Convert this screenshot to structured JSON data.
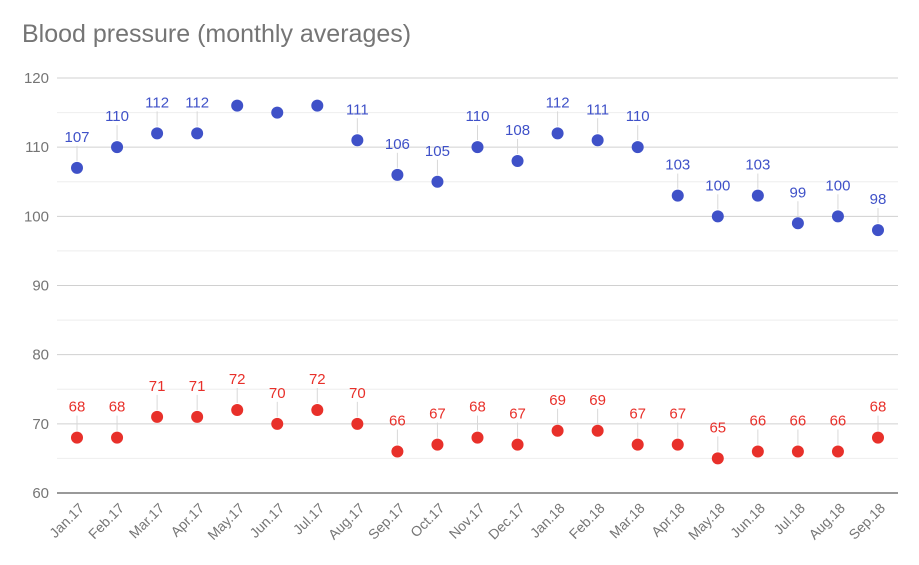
{
  "chart_data": {
    "type": "scatter",
    "title": "Blood pressure (monthly averages)",
    "xlabel": "",
    "ylabel": "",
    "ylim": [
      60,
      120
    ],
    "yticks": [
      60,
      70,
      80,
      90,
      100,
      110,
      120
    ],
    "grid": true,
    "legend": "none",
    "categories": [
      "Jan.17",
      "Feb.17",
      "Mar.17",
      "Apr.17",
      "May.17",
      "Jun.17",
      "Jul.17",
      "Aug.17",
      "Sep.17",
      "Oct.17",
      "Nov.17",
      "Dec.17",
      "Jan.18",
      "Feb.18",
      "Mar.18",
      "Apr.18",
      "May.18",
      "Jun.18",
      "Jul.18",
      "Aug.18",
      "Sep.18"
    ],
    "series": [
      {
        "color": "#3f51c8",
        "values": [
          107,
          110,
          112,
          112,
          116,
          115,
          116,
          111,
          106,
          105,
          110,
          108,
          112,
          111,
          110,
          103,
          100,
          103,
          99,
          100,
          98
        ],
        "labels": [
          "107",
          "110",
          "112",
          "112",
          "",
          "",
          "",
          "111",
          "106",
          "105",
          "110",
          "108",
          "112",
          "111",
          "110",
          "103",
          "100",
          "103",
          "99",
          "100",
          "98"
        ]
      },
      {
        "color": "#e8302a",
        "values": [
          68,
          68,
          71,
          71,
          72,
          70,
          72,
          70,
          66,
          67,
          68,
          67,
          69,
          69,
          67,
          67,
          65,
          66,
          66,
          66,
          68
        ],
        "labels": [
          "68",
          "68",
          "71",
          "71",
          "72",
          "70",
          "72",
          "70",
          "66",
          "67",
          "68",
          "67",
          "69",
          "69",
          "67",
          "67",
          "65",
          "66",
          "66",
          "66",
          "68"
        ]
      }
    ]
  }
}
